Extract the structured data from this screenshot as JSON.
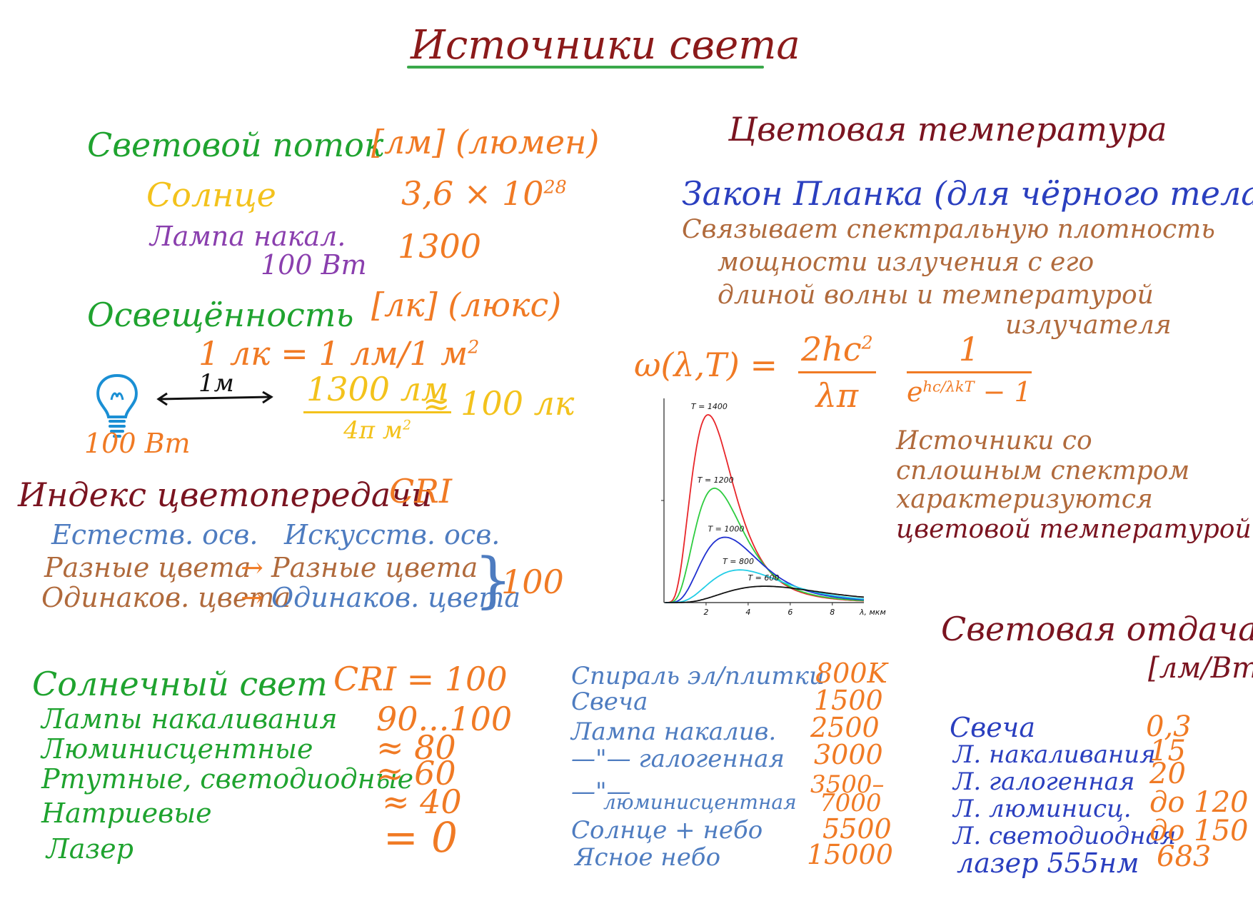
{
  "title": "Источники света",
  "colors": {
    "title": "#8b1a1a",
    "green": "#1fa32f",
    "orange": "#f07a24",
    "yellow": "#f3c21c",
    "purple": "#8a3fae",
    "darkred": "#7a1420",
    "blue": "#2a3fbf",
    "steel": "#4e7cc0",
    "brown": "#b06a3c"
  },
  "flux": {
    "heading": "Световой поток",
    "unit": "[лм] (люмен)",
    "sun_label": "Солнце",
    "sun_value": "3,6 × 10",
    "sun_exp": "28",
    "lamp_label": "Лампа накал.",
    "lamp_power": "100 Вт",
    "lamp_value": "1300"
  },
  "illum": {
    "heading": "Освещённость",
    "unit": "[лк] (люкс)",
    "def_lhs": "1 лк = 1 лм/1 м",
    "def_exp": "2",
    "distance": "1м",
    "bulb_power": "100 Вт",
    "frac_num": "1300 лм",
    "frac_den": "4π м",
    "frac_den_exp": "2",
    "result": "≈ 100 лк"
  },
  "cri": {
    "heading": "Индекс цветопередачи",
    "abbr": "CRI",
    "natural": "Естеств. осв.",
    "artificial": "Искусств. осв.",
    "row1_left": "Разные цвета",
    "row1_right": "Разные цвета",
    "row2_left": "Одинаков. цвета",
    "row2_right": "Одинаков. цвета",
    "arrow": "→",
    "brace": "}",
    "brace_value": "100"
  },
  "cri_list": {
    "sun_label": "Солнечный свет",
    "sun_value": "CRI = 100",
    "items": [
      {
        "label": "Лампы накаливания",
        "value": "90...100"
      },
      {
        "label": "Люминисцентные",
        "value": "≈ 80"
      },
      {
        "label": "Ртутные, светодиодные",
        "value": "≈ 60"
      },
      {
        "label": "Натриевые",
        "value": "≈ 40"
      },
      {
        "label": "Лазер",
        "value": "= 0"
      }
    ]
  },
  "colortemp": {
    "heading": "Цветовая температура",
    "planck_title": "Закон Планка (для чёрного тела)",
    "desc_lines": [
      "Связывает спектральную плотность",
      "мощности излучения с его",
      "длиной волны и температурой",
      "излучателя"
    ],
    "formula_lhs": "ω(λ,T) =",
    "f1_num": "2hc",
    "f1_exp": "2",
    "f1_den": "λπ",
    "f2_num": "1",
    "f2_den": "e",
    "f2_den_exp": "hc/λkT",
    "f2_den_tail": " − 1",
    "note_lines": [
      "Источники со",
      "сплошным спектром",
      "характеризуются"
    ],
    "note_emph": "цветовой температурой"
  },
  "chart_data": {
    "type": "line",
    "title": "",
    "xlabel": "λ, мкм",
    "ylabel": "",
    "xlim": [
      0,
      9.5
    ],
    "ylim": [
      0,
      1
    ],
    "xticks": [
      2,
      4,
      6,
      8
    ],
    "series": [
      {
        "name": "T = 1400",
        "color": "#e8262a",
        "peak_x": 2.1,
        "peak_y": 0.92
      },
      {
        "name": "T = 1200",
        "color": "#2ecc40",
        "peak_x": 2.4,
        "peak_y": 0.56
      },
      {
        "name": "T = 1000",
        "color": "#2030d0",
        "peak_x": 2.9,
        "peak_y": 0.32
      },
      {
        "name": "T = 800",
        "color": "#22cde6",
        "peak_x": 3.6,
        "peak_y": 0.16
      },
      {
        "name": "T = 600",
        "color": "#111111",
        "peak_x": 4.8,
        "peak_y": 0.08
      }
    ]
  },
  "temps": {
    "items": [
      {
        "label": "Спираль эл/плитки",
        "value": "800K"
      },
      {
        "label": "Свеча",
        "value": "1500"
      },
      {
        "label": "Лампа накалив.",
        "value": "2500"
      },
      {
        "label": "—\"— галогенная",
        "value": "3000"
      },
      {
        "label": "—\"—",
        "value": "3500–"
      },
      {
        "label": "люминисцентная",
        "value": "7000"
      },
      {
        "label": "Солнце + небо",
        "value": "5500"
      },
      {
        "label": "Ясное небо",
        "value": "15000"
      }
    ]
  },
  "efficacy": {
    "heading": "Световая отдача",
    "unit": "[лм/Вт]",
    "items": [
      {
        "label": "Свеча",
        "value": "0,3"
      },
      {
        "label": "Л. накаливания",
        "value": "15"
      },
      {
        "label": "Л. галогенная",
        "value": "20"
      },
      {
        "label": "Л. люминисц.",
        "value": "до 120"
      },
      {
        "label": "Л. светодиодная",
        "value": "до 150"
      },
      {
        "label": "лазер 555нм",
        "value": "683"
      }
    ]
  }
}
